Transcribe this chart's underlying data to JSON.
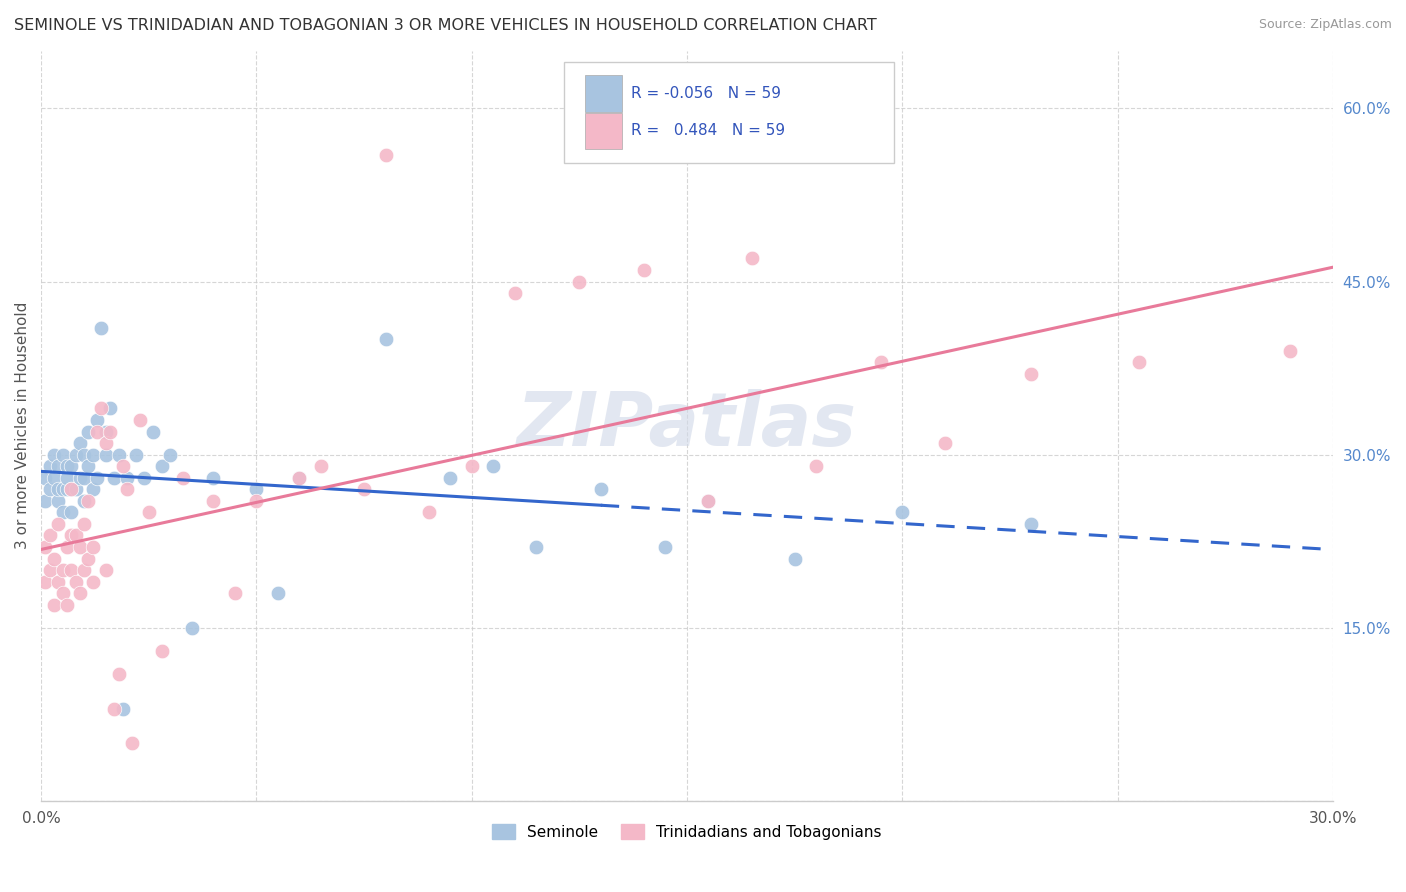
{
  "title": "SEMINOLE VS TRINIDADIAN AND TOBAGONIAN 3 OR MORE VEHICLES IN HOUSEHOLD CORRELATION CHART",
  "source": "Source: ZipAtlas.com",
  "ylabel": "3 or more Vehicles in Household",
  "x_min": 0.0,
  "x_max": 0.3,
  "y_min": 0.0,
  "y_max": 0.65,
  "x_ticks": [
    0.0,
    0.05,
    0.1,
    0.15,
    0.2,
    0.25,
    0.3
  ],
  "y_ticks": [
    0.0,
    0.15,
    0.3,
    0.45,
    0.6
  ],
  "legend_r_seminole": "-0.056",
  "legend_n_seminole": "59",
  "legend_r_trinidadian": "0.484",
  "legend_n_trinidadian": "59",
  "seminole_color": "#a8c4e0",
  "trinidadian_color": "#f4b8c8",
  "seminole_line_color": "#3366cc",
  "trinidadian_line_color": "#e87a9a",
  "watermark_text": "ZIPatlas",
  "watermark_color": "#d0d8e8",
  "seminole_label": "Seminole",
  "trinidadian_label": "Trinidadians and Tobagonians",
  "seminole_line_solid_end": 0.13,
  "seminole_x": [
    0.001,
    0.001,
    0.002,
    0.002,
    0.003,
    0.003,
    0.004,
    0.004,
    0.004,
    0.005,
    0.005,
    0.005,
    0.006,
    0.006,
    0.006,
    0.007,
    0.007,
    0.007,
    0.008,
    0.008,
    0.009,
    0.009,
    0.01,
    0.01,
    0.01,
    0.011,
    0.011,
    0.012,
    0.012,
    0.013,
    0.013,
    0.014,
    0.015,
    0.015,
    0.016,
    0.017,
    0.018,
    0.019,
    0.02,
    0.022,
    0.024,
    0.026,
    0.028,
    0.03,
    0.035,
    0.04,
    0.05,
    0.055,
    0.06,
    0.08,
    0.095,
    0.105,
    0.115,
    0.13,
    0.145,
    0.155,
    0.175,
    0.2,
    0.23
  ],
  "seminole_y": [
    0.28,
    0.26,
    0.27,
    0.29,
    0.28,
    0.3,
    0.26,
    0.27,
    0.29,
    0.25,
    0.27,
    0.3,
    0.27,
    0.29,
    0.28,
    0.25,
    0.27,
    0.29,
    0.27,
    0.3,
    0.28,
    0.31,
    0.26,
    0.28,
    0.3,
    0.29,
    0.32,
    0.27,
    0.3,
    0.28,
    0.33,
    0.41,
    0.3,
    0.32,
    0.34,
    0.28,
    0.3,
    0.08,
    0.28,
    0.3,
    0.28,
    0.32,
    0.29,
    0.3,
    0.15,
    0.28,
    0.27,
    0.18,
    0.28,
    0.4,
    0.28,
    0.29,
    0.22,
    0.27,
    0.22,
    0.26,
    0.21,
    0.25,
    0.24
  ],
  "trinidadian_x": [
    0.001,
    0.001,
    0.002,
    0.002,
    0.003,
    0.003,
    0.004,
    0.004,
    0.005,
    0.005,
    0.006,
    0.006,
    0.007,
    0.007,
    0.007,
    0.008,
    0.008,
    0.009,
    0.009,
    0.01,
    0.01,
    0.011,
    0.011,
    0.012,
    0.012,
    0.013,
    0.014,
    0.015,
    0.015,
    0.016,
    0.017,
    0.018,
    0.019,
    0.02,
    0.021,
    0.023,
    0.025,
    0.028,
    0.033,
    0.04,
    0.045,
    0.05,
    0.06,
    0.065,
    0.075,
    0.08,
    0.09,
    0.1,
    0.11,
    0.125,
    0.14,
    0.155,
    0.165,
    0.18,
    0.195,
    0.21,
    0.23,
    0.255,
    0.29
  ],
  "trinidadian_y": [
    0.19,
    0.22,
    0.2,
    0.23,
    0.17,
    0.21,
    0.19,
    0.24,
    0.18,
    0.2,
    0.22,
    0.17,
    0.23,
    0.2,
    0.27,
    0.19,
    0.23,
    0.18,
    0.22,
    0.2,
    0.24,
    0.21,
    0.26,
    0.19,
    0.22,
    0.32,
    0.34,
    0.31,
    0.2,
    0.32,
    0.08,
    0.11,
    0.29,
    0.27,
    0.05,
    0.33,
    0.25,
    0.13,
    0.28,
    0.26,
    0.18,
    0.26,
    0.28,
    0.29,
    0.27,
    0.56,
    0.25,
    0.29,
    0.44,
    0.45,
    0.46,
    0.26,
    0.47,
    0.29,
    0.38,
    0.31,
    0.37,
    0.38,
    0.39
  ]
}
